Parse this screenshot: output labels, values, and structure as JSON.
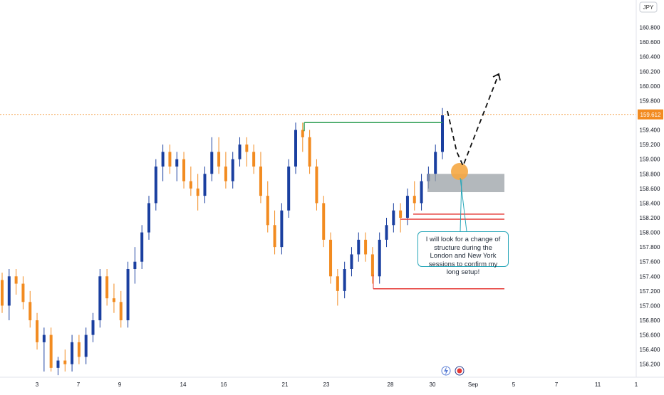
{
  "currency_label": "JPY",
  "price_tag": "159.612",
  "note_text": "I will look for a change of structure during the London and New York sessions to confirm my long setup!",
  "icons": [
    "lightning-icon",
    "target-icon"
  ],
  "colors": {
    "bull": "#1a3fa0",
    "bear": "#f28b20",
    "green": "#2e9e52",
    "red": "#e53935",
    "zone": "#9aa0a6",
    "highlight": "#f5a742",
    "callout": "#26a6b8",
    "price_line": "#f28b20"
  },
  "chart_data": {
    "type": "candlestick",
    "ylim": [
      156.1,
      161.0
    ],
    "y_ticks": [
      "160.800",
      "160.600",
      "160.400",
      "160.200",
      "160.000",
      "159.800",
      "159.600",
      "159.400",
      "159.200",
      "159.000",
      "158.800",
      "158.600",
      "158.400",
      "158.200",
      "158.000",
      "157.800",
      "157.600",
      "157.400",
      "157.200",
      "157.000",
      "156.800",
      "156.600",
      "156.400",
      "156.200"
    ],
    "x_ticks": [
      "3",
      "7",
      "9",
      "14",
      "16",
      "21",
      "23",
      "28",
      "30",
      "Sep",
      "5",
      "7",
      "11",
      "1"
    ],
    "last_price": 159.612,
    "grid": false,
    "candles": [
      [
        157.35,
        157.45,
        156.9,
        157.0
      ],
      [
        157.0,
        157.5,
        156.8,
        157.4
      ],
      [
        157.4,
        157.5,
        157.15,
        157.3
      ],
      [
        157.3,
        157.4,
        156.95,
        157.05
      ],
      [
        157.05,
        157.2,
        156.7,
        156.8
      ],
      [
        156.8,
        156.9,
        156.4,
        156.5
      ],
      [
        156.5,
        156.7,
        156.1,
        156.6
      ],
      [
        156.6,
        156.7,
        156.1,
        156.15
      ],
      [
        156.15,
        156.3,
        156.05,
        156.25
      ],
      [
        156.25,
        156.4,
        156.1,
        156.2
      ],
      [
        156.2,
        156.6,
        156.1,
        156.5
      ],
      [
        156.5,
        156.6,
        156.2,
        156.3
      ],
      [
        156.3,
        156.7,
        156.2,
        156.6
      ],
      [
        156.6,
        156.9,
        156.5,
        156.8
      ],
      [
        156.8,
        157.5,
        156.7,
        157.4
      ],
      [
        157.4,
        157.5,
        157.0,
        157.1
      ],
      [
        157.1,
        157.3,
        156.9,
        157.05
      ],
      [
        157.05,
        157.2,
        156.7,
        156.8
      ],
      [
        156.8,
        157.6,
        156.7,
        157.5
      ],
      [
        157.5,
        157.8,
        157.3,
        157.6
      ],
      [
        157.6,
        158.1,
        157.5,
        158.0
      ],
      [
        158.0,
        158.5,
        157.9,
        158.4
      ],
      [
        158.4,
        159.0,
        158.3,
        158.9
      ],
      [
        158.9,
        159.2,
        158.7,
        159.1
      ],
      [
        159.1,
        159.2,
        158.8,
        158.9
      ],
      [
        158.9,
        159.1,
        158.7,
        159.0
      ],
      [
        159.0,
        159.1,
        158.6,
        158.7
      ],
      [
        158.7,
        158.9,
        158.5,
        158.6
      ],
      [
        158.6,
        158.8,
        158.3,
        158.5
      ],
      [
        158.5,
        158.9,
        158.4,
        158.8
      ],
      [
        158.8,
        159.3,
        158.7,
        159.1
      ],
      [
        159.1,
        159.3,
        158.8,
        158.9
      ],
      [
        158.9,
        159.1,
        158.6,
        158.7
      ],
      [
        158.7,
        159.1,
        158.6,
        159.0
      ],
      [
        159.0,
        159.3,
        158.9,
        159.2
      ],
      [
        159.2,
        159.3,
        158.9,
        159.1
      ],
      [
        159.1,
        159.2,
        158.8,
        158.9
      ],
      [
        158.9,
        159.1,
        158.4,
        158.5
      ],
      [
        158.5,
        158.7,
        158.0,
        158.1
      ],
      [
        158.1,
        158.3,
        157.7,
        157.8
      ],
      [
        157.8,
        158.4,
        157.7,
        158.3
      ],
      [
        158.3,
        159.0,
        158.2,
        158.9
      ],
      [
        158.9,
        159.5,
        158.8,
        159.4
      ],
      [
        159.4,
        159.5,
        159.1,
        159.3
      ],
      [
        159.3,
        159.4,
        158.8,
        158.9
      ],
      [
        158.9,
        159.0,
        158.3,
        158.4
      ],
      [
        158.4,
        158.5,
        157.8,
        157.9
      ],
      [
        157.9,
        158.0,
        157.3,
        157.4
      ],
      [
        157.4,
        157.5,
        157.0,
        157.2
      ],
      [
        157.2,
        157.6,
        157.1,
        157.5
      ],
      [
        157.5,
        157.8,
        157.4,
        157.7
      ],
      [
        157.7,
        158.0,
        157.6,
        157.9
      ],
      [
        157.9,
        158.0,
        157.6,
        157.7
      ],
      [
        157.7,
        157.8,
        157.3,
        157.4
      ],
      [
        157.4,
        158.0,
        157.3,
        157.9
      ],
      [
        157.9,
        158.2,
        157.8,
        158.1
      ],
      [
        158.1,
        158.4,
        158.0,
        158.3
      ],
      [
        158.3,
        158.4,
        158.0,
        158.2
      ],
      [
        158.2,
        158.6,
        158.1,
        158.5
      ],
      [
        158.5,
        158.7,
        158.3,
        158.4
      ],
      [
        158.4,
        158.8,
        158.3,
        158.7
      ],
      [
        158.7,
        158.9,
        158.6,
        158.8
      ],
      [
        158.8,
        159.2,
        158.7,
        159.1
      ],
      [
        159.1,
        159.7,
        159.0,
        159.6
      ]
    ],
    "levels": [
      {
        "price": 159.5,
        "color": "green"
      },
      {
        "price": 158.25,
        "color": "red"
      },
      {
        "price": 158.18,
        "color": "red"
      },
      {
        "price": 157.23,
        "color": "red"
      }
    ],
    "zone": {
      "from": 158.55,
      "to": 158.8
    }
  }
}
